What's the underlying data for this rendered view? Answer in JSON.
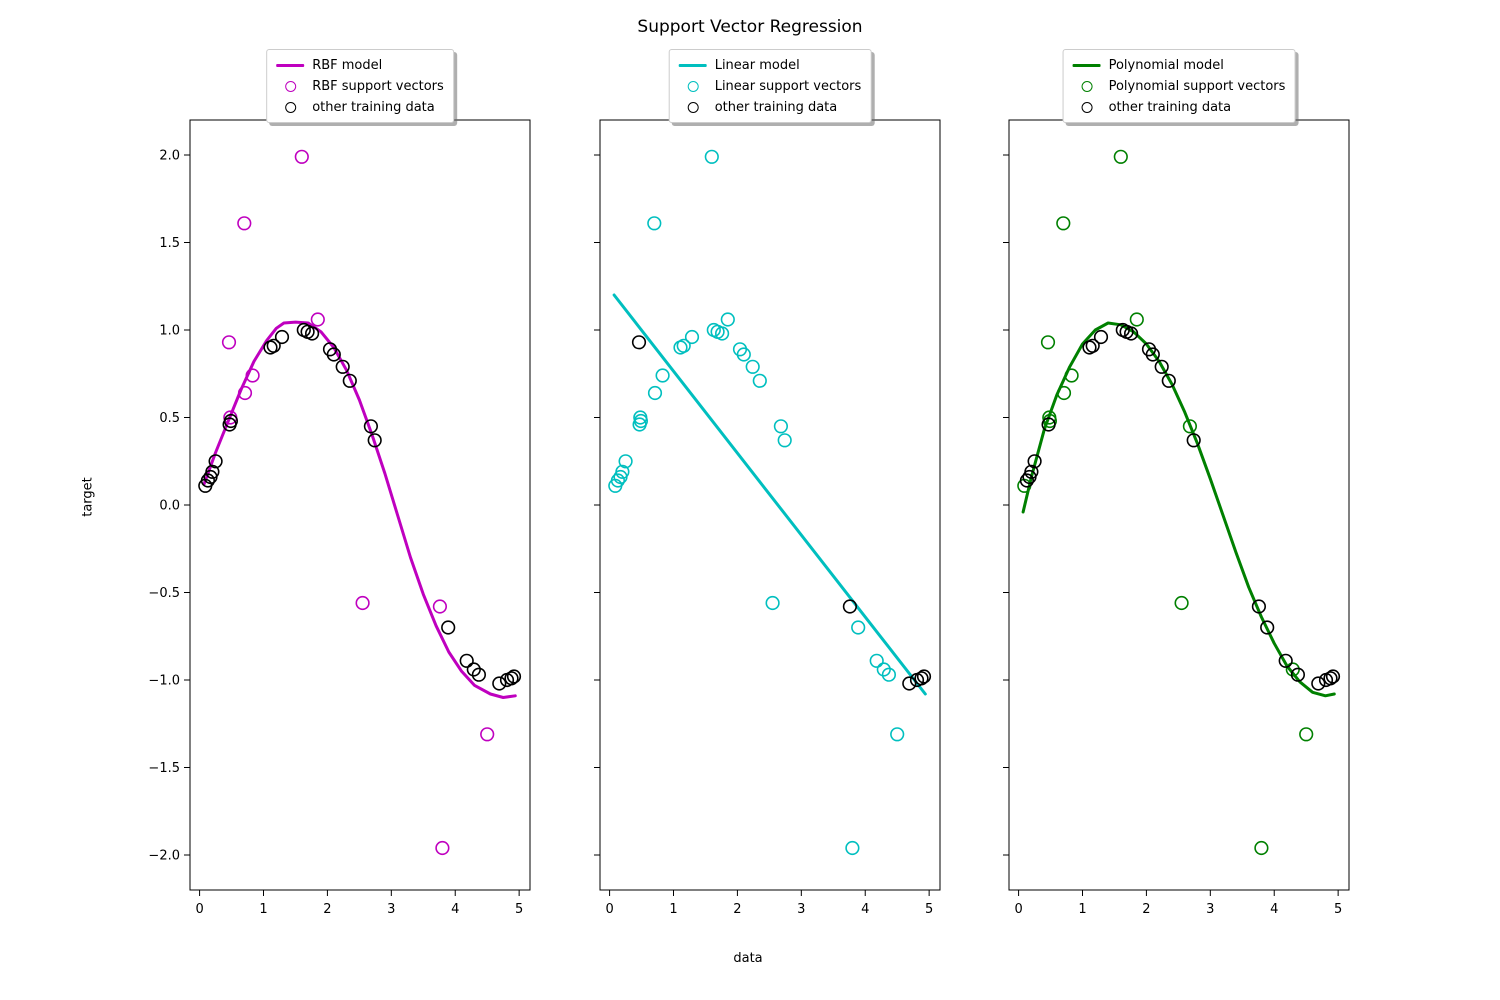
{
  "chart_data": {
    "type": "scatter",
    "title": "Support Vector Regression",
    "xlabel": "data",
    "ylabel": "target",
    "xlim": [
      -0.15,
      5.17
    ],
    "ylim": [
      -2.2,
      2.2
    ],
    "xticks": [
      0,
      1,
      2,
      3,
      4,
      5
    ],
    "xticklabels": [
      "0",
      "1",
      "2",
      "3",
      "4",
      "5"
    ],
    "yticks": [
      -2.0,
      -1.5,
      -1.0,
      -0.5,
      0.0,
      0.5,
      1.0,
      1.5,
      2.0
    ],
    "yticklabels": [
      "−2.0",
      "−1.5",
      "−1.0",
      "−0.5",
      "0.0",
      "0.5",
      "1.0",
      "1.5",
      "2.0"
    ],
    "grid": false,
    "legend_position": "above-axes-center",
    "marker_color_other": "#000000",
    "points": [
      [
        0.09,
        0.11
      ],
      [
        0.13,
        0.14
      ],
      [
        0.17,
        0.16
      ],
      [
        0.2,
        0.19
      ],
      [
        0.25,
        0.25
      ],
      [
        0.46,
        0.93
      ],
      [
        0.47,
        0.46
      ],
      [
        0.48,
        0.5
      ],
      [
        0.49,
        0.48
      ],
      [
        0.7,
        1.61
      ],
      [
        0.71,
        0.64
      ],
      [
        0.83,
        0.74
      ],
      [
        1.11,
        0.9
      ],
      [
        1.16,
        0.91
      ],
      [
        1.29,
        0.96
      ],
      [
        1.6,
        1.99
      ],
      [
        1.63,
        1.0
      ],
      [
        1.69,
        0.99
      ],
      [
        1.76,
        0.98
      ],
      [
        1.85,
        1.06
      ],
      [
        2.04,
        0.89
      ],
      [
        2.1,
        0.86
      ],
      [
        2.24,
        0.79
      ],
      [
        2.35,
        0.71
      ],
      [
        2.55,
        -0.56
      ],
      [
        2.68,
        0.45
      ],
      [
        2.74,
        0.37
      ],
      [
        3.76,
        -0.58
      ],
      [
        3.8,
        -1.96
      ],
      [
        3.89,
        -0.7
      ],
      [
        4.18,
        -0.89
      ],
      [
        4.29,
        -0.94
      ],
      [
        4.37,
        -0.97
      ],
      [
        4.5,
        -1.31
      ],
      [
        4.69,
        -1.02
      ],
      [
        4.81,
        -1.0
      ],
      [
        4.88,
        -0.99
      ],
      [
        4.92,
        -0.98
      ]
    ],
    "subplots": [
      {
        "name": "rbf",
        "color": "#bf00bf",
        "legend": {
          "model": "RBF model",
          "support_vectors": "RBF support vectors",
          "other": "other training data"
        },
        "support_vector_indices": [
          5,
          7,
          9,
          10,
          11,
          15,
          19,
          24,
          27,
          28,
          33
        ],
        "curve": [
          [
            0.07,
            0.12
          ],
          [
            0.25,
            0.3
          ],
          [
            0.45,
            0.48
          ],
          [
            0.65,
            0.66
          ],
          [
            0.85,
            0.82
          ],
          [
            1.05,
            0.94
          ],
          [
            1.2,
            1.01
          ],
          [
            1.32,
            1.04
          ],
          [
            1.5,
            1.045
          ],
          [
            1.7,
            1.04
          ],
          [
            1.9,
            0.99
          ],
          [
            2.1,
            0.9
          ],
          [
            2.3,
            0.77
          ],
          [
            2.5,
            0.6
          ],
          [
            2.7,
            0.4
          ],
          [
            2.9,
            0.18
          ],
          [
            3.1,
            -0.06
          ],
          [
            3.3,
            -0.3
          ],
          [
            3.5,
            -0.51
          ],
          [
            3.7,
            -0.69
          ],
          [
            3.9,
            -0.84
          ],
          [
            4.1,
            -0.95
          ],
          [
            4.3,
            -1.03
          ],
          [
            4.55,
            -1.08
          ],
          [
            4.75,
            -1.1
          ],
          [
            4.94,
            -1.09
          ]
        ]
      },
      {
        "name": "linear",
        "color": "#00bfbf",
        "legend": {
          "model": "Linear model",
          "support_vectors": "Linear support vectors",
          "other": "other training data"
        },
        "support_vector_indices": [
          0,
          1,
          2,
          3,
          4,
          6,
          7,
          8,
          9,
          10,
          11,
          12,
          13,
          14,
          15,
          16,
          17,
          18,
          19,
          20,
          21,
          22,
          23,
          24,
          25,
          26,
          28,
          29,
          30,
          31,
          32,
          33
        ],
        "curve": [
          [
            0.07,
            1.2
          ],
          [
            4.94,
            -1.08
          ]
        ]
      },
      {
        "name": "polynomial",
        "color": "#008000",
        "legend": {
          "model": "Polynomial model",
          "support_vectors": "Polynomial support vectors",
          "other": "other training data"
        },
        "support_vector_indices": [
          0,
          5,
          7,
          8,
          9,
          10,
          11,
          15,
          19,
          24,
          25,
          28,
          31,
          33
        ],
        "curve": [
          [
            0.07,
            -0.04
          ],
          [
            0.2,
            0.16
          ],
          [
            0.4,
            0.43
          ],
          [
            0.6,
            0.63
          ],
          [
            0.8,
            0.79
          ],
          [
            1.0,
            0.92
          ],
          [
            1.2,
            1.0
          ],
          [
            1.4,
            1.04
          ],
          [
            1.6,
            1.03
          ],
          [
            1.8,
            0.99
          ],
          [
            2.0,
            0.92
          ],
          [
            2.2,
            0.82
          ],
          [
            2.4,
            0.69
          ],
          [
            2.6,
            0.53
          ],
          [
            2.8,
            0.35
          ],
          [
            3.0,
            0.15
          ],
          [
            3.2,
            -0.06
          ],
          [
            3.4,
            -0.27
          ],
          [
            3.6,
            -0.47
          ],
          [
            3.8,
            -0.64
          ],
          [
            4.0,
            -0.79
          ],
          [
            4.2,
            -0.92
          ],
          [
            4.4,
            -1.01
          ],
          [
            4.6,
            -1.07
          ],
          [
            4.8,
            -1.09
          ],
          [
            4.94,
            -1.08
          ]
        ]
      }
    ]
  }
}
